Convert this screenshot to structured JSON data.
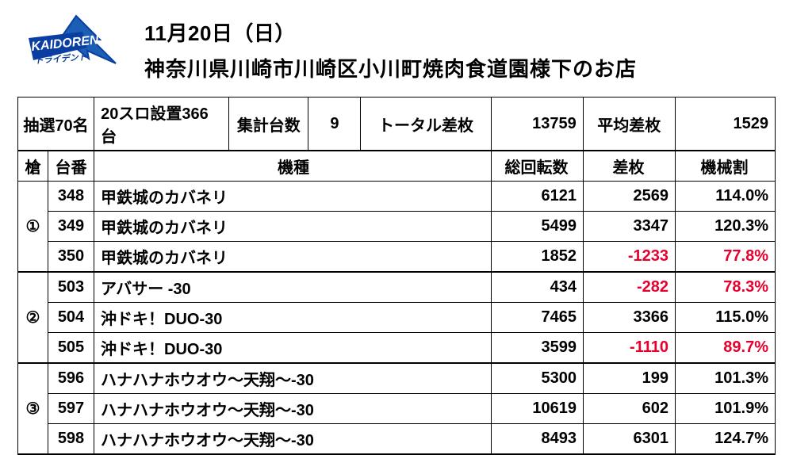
{
  "header": {
    "date": "11月20日（日）",
    "place": "神奈川県川崎市川崎区小川町焼肉食道園様下のお店"
  },
  "summary": {
    "lottery_label": "抽選70名",
    "setup_label": "20スロ設置366台",
    "agg_label": "集計台数",
    "agg_value": "9",
    "total_diff_label": "トータル差枚",
    "total_diff_value": "13759",
    "avg_diff_label": "平均差枚",
    "avg_diff_value": "1529"
  },
  "columns": {
    "spear": "槍",
    "machine_no": "台番",
    "model": "機種",
    "spins": "総回転数",
    "diff": "差枚",
    "ratio": "機械割"
  },
  "groups": [
    {
      "label": "①",
      "rows": [
        {
          "num": "348",
          "model": "甲鉄城のカバネリ",
          "spins": "6121",
          "diff": "2569",
          "diff_neg": false,
          "ratio": "114.0%",
          "ratio_neg": false
        },
        {
          "num": "349",
          "model": "甲鉄城のカバネリ",
          "spins": "5499",
          "diff": "3347",
          "diff_neg": false,
          "ratio": "120.3%",
          "ratio_neg": false
        },
        {
          "num": "350",
          "model": "甲鉄城のカバネリ",
          "spins": "1852",
          "diff": "-1233",
          "diff_neg": true,
          "ratio": "77.8%",
          "ratio_neg": true
        }
      ]
    },
    {
      "label": "②",
      "rows": [
        {
          "num": "503",
          "model": "アバサー -30",
          "spins": "434",
          "diff": "-282",
          "diff_neg": true,
          "ratio": "78.3%",
          "ratio_neg": true
        },
        {
          "num": "504",
          "model": "沖ドキ！DUO-30",
          "spins": "7465",
          "diff": "3366",
          "diff_neg": false,
          "ratio": "115.0%",
          "ratio_neg": false
        },
        {
          "num": "505",
          "model": "沖ドキ！DUO-30",
          "spins": "3599",
          "diff": "-1110",
          "diff_neg": true,
          "ratio": "89.7%",
          "ratio_neg": true
        }
      ]
    },
    {
      "label": "③",
      "rows": [
        {
          "num": "596",
          "model": "ハナハナホウオウ～天翔～-30",
          "spins": "5300",
          "diff": "199",
          "diff_neg": false,
          "ratio": "101.3%",
          "ratio_neg": false
        },
        {
          "num": "597",
          "model": "ハナハナホウオウ～天翔～-30",
          "spins": "10619",
          "diff": "602",
          "diff_neg": false,
          "ratio": "101.9%",
          "ratio_neg": false
        },
        {
          "num": "598",
          "model": "ハナハナホウオウ～天翔～-30",
          "spins": "8493",
          "diff": "6301",
          "diff_neg": false,
          "ratio": "124.7%",
          "ratio_neg": false
        }
      ]
    }
  ],
  "style": {
    "neg_color": "#e6002d",
    "border_color": "#000000",
    "bg": "#ffffff",
    "font_size_title": 26,
    "font_size_cell": 20,
    "logo_colors": {
      "arrow": "#1a5fb4",
      "band": "#0b3ea3",
      "text": "#ffffff"
    }
  }
}
